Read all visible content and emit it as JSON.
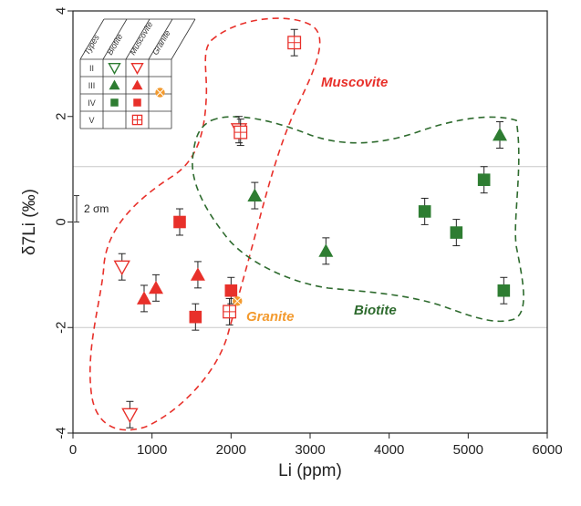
{
  "chart_data": {
    "type": "scatter",
    "xlabel": "Li (ppm)",
    "ylabel": "δ7Li (‰)",
    "xlim": [
      0,
      6000
    ],
    "ylim": [
      -4,
      4
    ],
    "x_ticks": [
      0,
      1000,
      2000,
      3000,
      4000,
      5000,
      6000
    ],
    "y_ticks": [
      -4,
      -2,
      0,
      2,
      4
    ],
    "reference_lines_y": [
      1.05,
      -2.0
    ],
    "error_bar_label": "2 σm",
    "annotations": {
      "muscovite": "Muscovite",
      "biotite": "Biotite",
      "granite": "Granite"
    },
    "legend": {
      "headers": [
        "Types",
        "Biotite",
        "Muscovite",
        "Granite"
      ],
      "rows": [
        "II",
        "III",
        "IV",
        "V"
      ]
    },
    "colors": {
      "biotite": "#2e7d32",
      "muscovite": "#e8302a",
      "granite": "#f39a2e",
      "envelope_muscovite": "#e8302a",
      "envelope_biotite": "#2e6b2e"
    },
    "series": [
      {
        "name": "Biotite",
        "type": "III",
        "marker": "triangle-filled",
        "color": "#2e7d32",
        "points": [
          [
            2300,
            0.5,
            0.25
          ],
          [
            3200,
            -0.55,
            0.25
          ],
          [
            5400,
            1.65,
            0.25
          ]
        ]
      },
      {
        "name": "Biotite",
        "type": "IV",
        "marker": "square-filled",
        "color": "#2e7d32",
        "points": [
          [
            4450,
            0.2,
            0.25
          ],
          [
            4850,
            -0.2,
            0.25
          ],
          [
            5200,
            0.8,
            0.25
          ],
          [
            5450,
            -1.3,
            0.25
          ]
        ]
      },
      {
        "name": "Muscovite",
        "type": "II",
        "marker": "triangle-down-open",
        "color": "#e8302a",
        "points": [
          [
            620,
            -0.85,
            0.25
          ],
          [
            720,
            -3.65,
            0.25
          ],
          [
            2100,
            1.75,
            0.25
          ]
        ]
      },
      {
        "name": "Muscovite",
        "type": "III",
        "marker": "triangle-filled",
        "color": "#e8302a",
        "points": [
          [
            900,
            -1.45,
            0.25
          ],
          [
            1050,
            -1.25,
            0.25
          ],
          [
            1580,
            -1.0,
            0.25
          ]
        ]
      },
      {
        "name": "Muscovite",
        "type": "IV",
        "marker": "square-filled",
        "color": "#e8302a",
        "points": [
          [
            1350,
            0.0,
            0.25
          ],
          [
            1550,
            -1.8,
            0.25
          ],
          [
            2000,
            -1.3,
            0.25
          ]
        ]
      },
      {
        "name": "Muscovite",
        "type": "V",
        "marker": "square-crossed",
        "color": "#e8302a",
        "points": [
          [
            1980,
            -1.7,
            0.25
          ],
          [
            2120,
            1.7,
            0.25
          ],
          [
            2800,
            3.4,
            0.25
          ]
        ]
      },
      {
        "name": "Granite",
        "type": "III",
        "marker": "circle-crossed",
        "color": "#f39a2e",
        "points": [
          [
            2080,
            -1.5,
            0.0
          ]
        ]
      }
    ]
  }
}
